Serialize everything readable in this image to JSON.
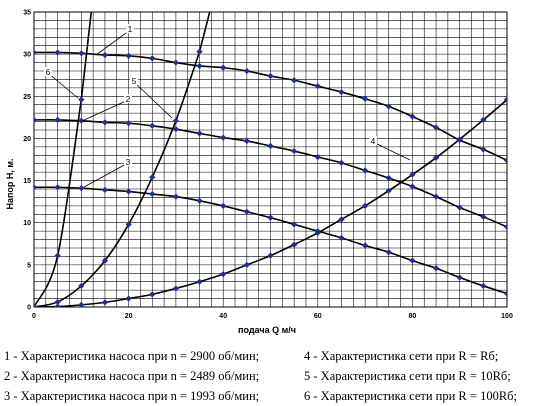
{
  "chart_data": {
    "type": "line",
    "xlabel": "подача Q м/ч",
    "ylabel": "Напор H, м.",
    "xlim": [
      0,
      100
    ],
    "ylim": [
      0,
      35
    ],
    "x_ticks": [
      "0",
      "20",
      "40",
      "60",
      "80",
      "100"
    ],
    "y_ticks": [
      "0",
      "5",
      "10",
      "15",
      "20",
      "25",
      "30",
      "35"
    ],
    "grid": true,
    "series": [
      {
        "label": "1",
        "x": [
          0,
          5,
          10,
          15,
          20,
          25,
          30,
          35,
          40,
          45,
          50,
          55,
          60,
          65,
          70,
          75,
          80,
          85,
          90,
          95,
          100
        ],
        "values": [
          30.2,
          30.2,
          30.1,
          29.9,
          29.8,
          29.5,
          29.0,
          28.6,
          28.4,
          28.0,
          27.4,
          26.9,
          26.2,
          25.5,
          24.7,
          23.8,
          22.6,
          21.3,
          19.8,
          18.7,
          17.4
        ]
      },
      {
        "label": "2",
        "x": [
          0,
          5,
          10,
          15,
          20,
          25,
          30,
          35,
          40,
          45,
          50,
          55,
          60,
          65,
          70,
          75,
          80,
          85,
          90,
          95,
          100
        ],
        "values": [
          22.2,
          22.2,
          22.1,
          21.9,
          21.8,
          21.5,
          21.1,
          20.6,
          20.1,
          19.7,
          19.1,
          18.5,
          17.8,
          17.1,
          16.2,
          15.3,
          14.3,
          13.1,
          11.8,
          10.7,
          9.5
        ]
      },
      {
        "label": "3",
        "x": [
          0,
          5,
          10,
          15,
          20,
          25,
          30,
          35,
          40,
          45,
          50,
          55,
          60,
          65,
          70,
          75,
          80,
          85,
          90,
          95,
          100
        ],
        "values": [
          14.2,
          14.2,
          14.1,
          13.9,
          13.7,
          13.4,
          13.1,
          12.6,
          12.0,
          11.3,
          10.6,
          9.8,
          9.0,
          8.2,
          7.3,
          6.5,
          5.5,
          4.6,
          3.5,
          2.5,
          1.6
        ]
      },
      {
        "label": "4",
        "x": [
          0,
          5,
          10,
          15,
          20,
          25,
          30,
          35,
          40,
          45,
          50,
          55,
          60,
          65,
          70,
          75,
          80,
          85,
          90,
          95,
          100
        ],
        "values": [
          0,
          0.06,
          0.25,
          0.55,
          1.0,
          1.5,
          2.2,
          3.0,
          3.9,
          5.0,
          6.1,
          7.4,
          8.8,
          10.4,
          12.0,
          13.8,
          15.7,
          17.7,
          19.9,
          22.2,
          24.6
        ]
      },
      {
        "label": "5",
        "x": [
          0,
          5,
          10,
          15,
          20,
          25,
          30,
          35
        ],
        "values": [
          0,
          0.6,
          2.5,
          5.5,
          9.8,
          15.4,
          22.1,
          30.3
        ]
      },
      {
        "label": "6",
        "x": [
          0,
          5,
          10
        ],
        "values": [
          0,
          6.1,
          24.6
        ]
      }
    ],
    "annotations": [
      {
        "text": "1",
        "series": "1"
      },
      {
        "text": "2",
        "series": "2"
      },
      {
        "text": "3",
        "series": "3"
      },
      {
        "text": "4",
        "series": "4"
      },
      {
        "text": "5",
        "series": "5"
      },
      {
        "text": "6",
        "series": "6"
      }
    ]
  },
  "legend": {
    "items": [
      "1 - Характеристика насоса при n = 2900 об/мин;",
      "4 - Характеристика сети при R = Rб;",
      "2 - Характеристика насоса при n = 2489 об/мин;",
      "5 - Характеристика сети при R = 10Rб;",
      "3 - Характеристика насоса при n = 1993 об/мин;",
      "6 - Характеристика сети при R = 100Rб;"
    ]
  }
}
